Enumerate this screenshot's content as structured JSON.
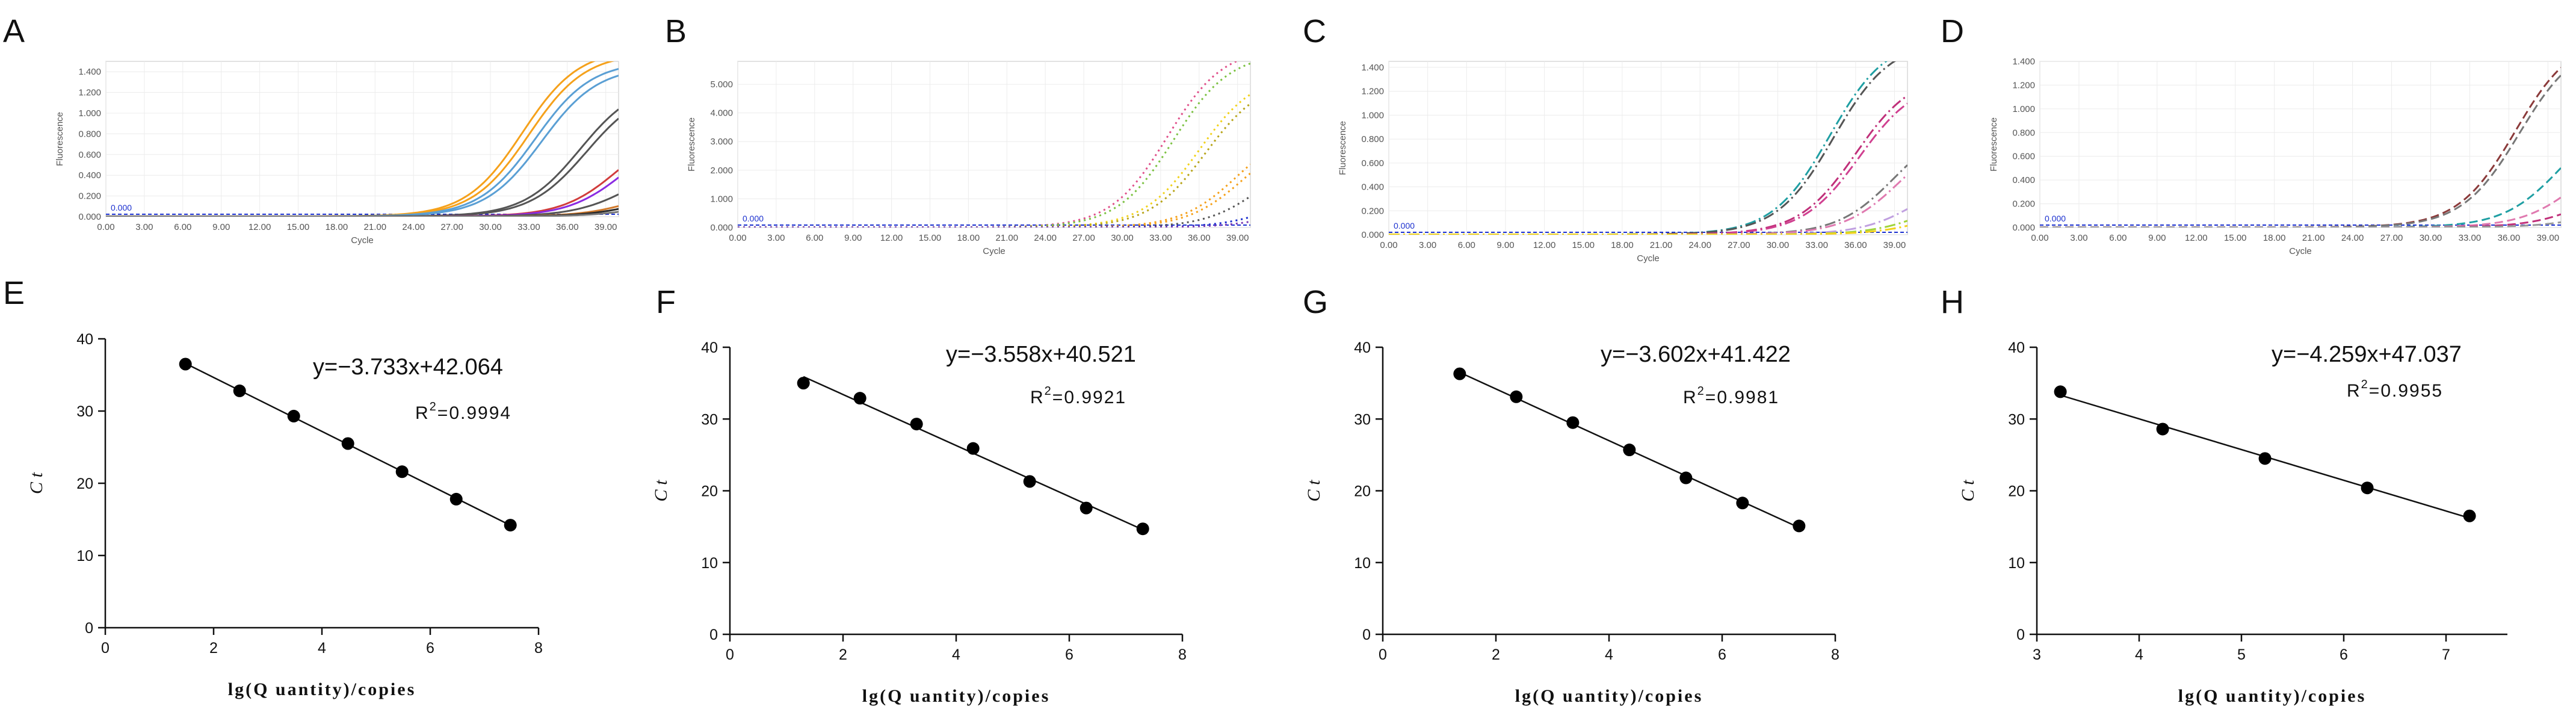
{
  "figure": {
    "panels_top": [
      "A",
      "B",
      "C",
      "D"
    ],
    "panels_bottom": [
      "E",
      "F",
      "G",
      "H"
    ]
  },
  "chart_data": [
    {
      "panel": "A",
      "type": "line",
      "xlabel": "Cycle",
      "ylabel": "Fluorescence",
      "xlim": [
        0,
        40
      ],
      "ylim": [
        0,
        1.5
      ],
      "x_ticks": [
        "0.00",
        "3.00",
        "6.00",
        "9.00",
        "12.00",
        "15.00",
        "18.00",
        "21.00",
        "24.00",
        "27.00",
        "30.00",
        "33.00",
        "36.00",
        "39.00"
      ],
      "y_ticks": [
        "0.000",
        "0.200",
        "0.400",
        "0.600",
        "0.800",
        "1.000",
        "1.200",
        "1.400"
      ],
      "threshold_label": "0.000",
      "grid": true,
      "line_style": "solid",
      "series": [
        {
          "color": "#f5a11b",
          "ct": 27.5,
          "plateau": 1.62
        },
        {
          "color": "#f5a11b",
          "ct": 28.0,
          "plateau": 1.58
        },
        {
          "color": "#5a9fd4",
          "ct": 28.5,
          "plateau": 1.5
        },
        {
          "color": "#5a9fd4",
          "ct": 29.0,
          "plateau": 1.45
        },
        {
          "color": "#555555",
          "ct": 32.0,
          "plateau": 1.3
        },
        {
          "color": "#555555",
          "ct": 32.5,
          "plateau": 1.25
        },
        {
          "color": "#d13c3c",
          "ct": 35.0,
          "plateau": 0.9
        },
        {
          "color": "#8a2be2",
          "ct": 35.5,
          "plateau": 0.85
        },
        {
          "color": "#555555",
          "ct": 36.0,
          "plateau": 0.55
        },
        {
          "color": "#d17a2c",
          "ct": 37.0,
          "plateau": 0.35
        },
        {
          "color": "#2a2a2a",
          "ct": 37.5,
          "plateau": 0.3
        },
        {
          "color": "#777777",
          "ct": 38.0,
          "plateau": 0.22
        }
      ]
    },
    {
      "panel": "B",
      "type": "line",
      "xlabel": "Cycle",
      "ylabel": "Fluorescence",
      "xlim": [
        0,
        40
      ],
      "ylim": [
        0,
        5.8
      ],
      "x_ticks": [
        "0.00",
        "3.00",
        "6.00",
        "9.00",
        "12.00",
        "15.00",
        "18.00",
        "21.00",
        "24.00",
        "27.00",
        "30.00",
        "33.00",
        "36.00",
        "39.00"
      ],
      "y_ticks": [
        "0.000",
        "1.000",
        "2.000",
        "3.000",
        "4.000",
        "5.000"
      ],
      "threshold_label": "0.000",
      "grid": true,
      "line_style": "dotted",
      "series": [
        {
          "color": "#e0508a",
          "ct": 28.5,
          "plateau": 6.3
        },
        {
          "color": "#7cc242",
          "ct": 29.0,
          "plateau": 6.1
        },
        {
          "color": "#f2d21b",
          "ct": 31.0,
          "plateau": 5.4
        },
        {
          "color": "#b8a51b",
          "ct": 31.5,
          "plateau": 5.2
        },
        {
          "color": "#f5a11b",
          "ct": 34.0,
          "plateau": 3.6
        },
        {
          "color": "#f5a11b",
          "ct": 34.5,
          "plateau": 3.4
        },
        {
          "color": "#555555",
          "ct": 36.0,
          "plateau": 2.8
        },
        {
          "color": "#1a2fcf",
          "ct": 37.5,
          "plateau": 1.5
        },
        {
          "color": "#7a3bb5",
          "ct": 38.0,
          "plateau": 1.0
        }
      ]
    },
    {
      "panel": "C",
      "type": "line",
      "xlabel": "Cycle",
      "ylabel": "Fluorescence",
      "xlim": [
        0,
        40
      ],
      "ylim": [
        0,
        1.45
      ],
      "x_ticks": [
        "0.00",
        "3.00",
        "6.00",
        "9.00",
        "12.00",
        "15.00",
        "18.00",
        "21.00",
        "24.00",
        "27.00",
        "30.00",
        "33.00",
        "36.00",
        "39.00"
      ],
      "y_ticks": [
        "0.000",
        "0.200",
        "0.400",
        "0.600",
        "0.800",
        "1.000",
        "1.200",
        "1.400"
      ],
      "threshold_label": "0.000",
      "grid": true,
      "line_style": "dashdot",
      "series": [
        {
          "color": "#1f9fa3",
          "ct": 29.0,
          "plateau": 1.65
        },
        {
          "color": "#555555",
          "ct": 29.3,
          "plateau": 1.62
        },
        {
          "color": "#c0307a",
          "ct": 31.0,
          "plateau": 1.35
        },
        {
          "color": "#d04090",
          "ct": 31.3,
          "plateau": 1.3
        },
        {
          "color": "#777777",
          "ct": 34.0,
          "plateau": 0.95
        },
        {
          "color": "#e07ab0",
          "ct": 34.5,
          "plateau": 0.9
        },
        {
          "color": "#c0a0e0",
          "ct": 36.0,
          "plateau": 0.55
        },
        {
          "color": "#9fd43a",
          "ct": 37.0,
          "plateau": 0.4
        },
        {
          "color": "#f2d21b",
          "ct": 37.5,
          "plateau": 0.3
        }
      ]
    },
    {
      "panel": "D",
      "type": "line",
      "xlabel": "Cycle",
      "ylabel": "Fluorescence",
      "xlim": [
        0,
        40
      ],
      "ylim": [
        0,
        1.4
      ],
      "x_ticks": [
        "0.00",
        "3.00",
        "6.00",
        "9.00",
        "12.00",
        "15.00",
        "18.00",
        "21.00",
        "24.00",
        "27.00",
        "30.00",
        "33.00",
        "36.00",
        "39.00"
      ],
      "y_ticks": [
        "0.000",
        "0.200",
        "0.400",
        "0.600",
        "0.800",
        "1.000",
        "1.200",
        "1.400"
      ],
      "threshold_label": "0.000",
      "grid": true,
      "line_style": "dashed",
      "series": [
        {
          "color": "#8b3a3a",
          "ct": 31.5,
          "plateau": 1.62
        },
        {
          "color": "#777777",
          "ct": 31.8,
          "plateau": 1.58
        },
        {
          "color": "#1f9fa3",
          "ct": 35.0,
          "plateau": 1.0
        },
        {
          "color": "#e07ab0",
          "ct": 36.5,
          "plateau": 0.75
        },
        {
          "color": "#c0307a",
          "ct": 37.5,
          "plateau": 0.45
        },
        {
          "color": "#999999",
          "ct": 38.5,
          "plateau": 0.25
        }
      ]
    },
    {
      "panel": "E",
      "type": "scatter",
      "xlabel": "lg(Q uantity)/copies",
      "ylabel": "C t",
      "xlim": [
        0,
        8
      ],
      "ylim": [
        0,
        40
      ],
      "x_ticks": [
        0,
        2,
        4,
        6,
        8
      ],
      "y_ticks": [
        0,
        10,
        20,
        30,
        40
      ],
      "equation": "y=−3.733x+42.064",
      "r2_value": "=0.9994",
      "fit": {
        "slope": -3.733,
        "intercept": 42.064
      },
      "x": [
        1.48,
        2.48,
        3.48,
        4.48,
        5.48,
        6.48,
        7.48
      ],
      "y": [
        36.5,
        32.8,
        29.3,
        25.5,
        21.6,
        17.8,
        14.2
      ]
    },
    {
      "panel": "F",
      "type": "scatter",
      "xlabel": "lg(Q uantity)/copies",
      "ylabel": "C t",
      "xlim": [
        0,
        8
      ],
      "ylim": [
        0,
        40
      ],
      "x_ticks": [
        0,
        2,
        4,
        6,
        8
      ],
      "y_ticks": [
        0,
        10,
        20,
        30,
        40
      ],
      "equation": "y=−3.558x+40.521",
      "r2_value": "=0.9921",
      "fit": {
        "slope": -3.558,
        "intercept": 40.521
      },
      "x": [
        1.3,
        2.3,
        3.3,
        4.3,
        5.3,
        6.3,
        7.3
      ],
      "y": [
        35.0,
        32.9,
        29.3,
        25.9,
        21.3,
        17.6,
        14.7
      ]
    },
    {
      "panel": "G",
      "type": "scatter",
      "xlabel": "lg(Q uantity)/copies",
      "ylabel": "C t",
      "xlim": [
        0,
        8
      ],
      "ylim": [
        0,
        40
      ],
      "x_ticks": [
        0,
        2,
        4,
        6,
        8
      ],
      "y_ticks": [
        0,
        10,
        20,
        30,
        40
      ],
      "equation": "y=−3.602x+41.422",
      "r2_value": "=0.9981",
      "fit": {
        "slope": -3.602,
        "intercept": 41.422
      },
      "x": [
        1.36,
        2.36,
        3.36,
        4.36,
        5.36,
        6.36,
        7.36
      ],
      "y": [
        36.3,
        33.1,
        29.5,
        25.7,
        21.8,
        18.3,
        15.1
      ]
    },
    {
      "panel": "H",
      "type": "scatter",
      "xlabel": "lg(Q uantity)/copies",
      "ylabel": "C t",
      "xlim": [
        3,
        7.6
      ],
      "ylim": [
        0,
        40
      ],
      "x_ticks": [
        3,
        4,
        5,
        6,
        7
      ],
      "y_ticks": [
        0,
        10,
        20,
        30,
        40
      ],
      "equation": "y=−4.259x+47.037",
      "r2_value": "=0.9955",
      "fit": {
        "slope": -4.259,
        "intercept": 47.037
      },
      "x": [
        3.23,
        4.23,
        5.23,
        6.23,
        7.23
      ],
      "y": [
        33.8,
        28.6,
        24.5,
        20.4,
        16.5
      ]
    }
  ]
}
